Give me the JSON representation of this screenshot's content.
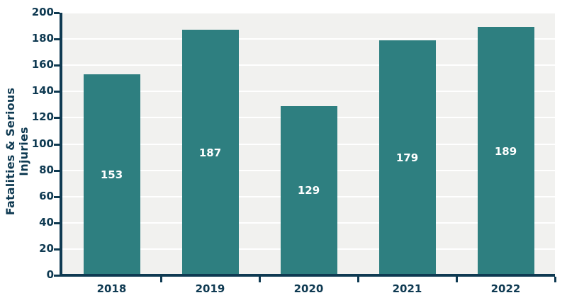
{
  "chart_data": {
    "type": "bar",
    "title": "",
    "categories": [
      "2018",
      "2019",
      "2020",
      "2021",
      "2022"
    ],
    "values": [
      153,
      187,
      129,
      179,
      189
    ],
    "data_labels": [
      "153",
      "187",
      "129",
      "179",
      "189"
    ],
    "xlabel": "",
    "ylabel": "Fatalities & Serious Injuries",
    "ylim": [
      0,
      200
    ],
    "yticks": [
      0,
      20,
      40,
      60,
      80,
      100,
      120,
      140,
      160,
      180,
      200
    ],
    "ytick_labels": [
      "0",
      "20",
      "40",
      "60",
      "80",
      "100",
      "120",
      "140",
      "160",
      "180",
      "200"
    ],
    "grid": true,
    "legend_position": "none",
    "colors": {
      "bar_fill": "#2e7f80",
      "axis": "#0f3a52",
      "tick_text": "#0f3a52",
      "data_label_text": "#ffffff",
      "plot_background": "#f1f1ef",
      "gridline": "#ffffff",
      "page_background": "#ffffff"
    }
  }
}
